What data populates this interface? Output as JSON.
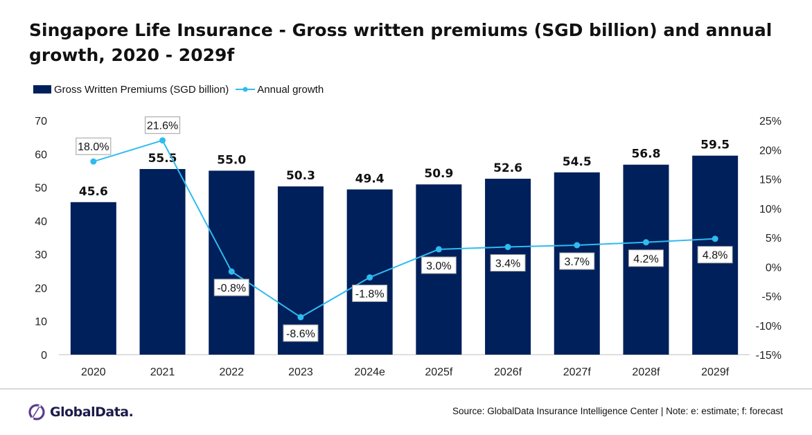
{
  "title": "Singapore Life Insurance - Gross written premiums (SGD billion) and annual growth, 2020 - 2029f",
  "footer": {
    "source": "Source: GlobalData Insurance Intelligence Center | Note: e: estimate; f: forecast",
    "logo_text": "GlobalData."
  },
  "colors": {
    "bar": "#00205b",
    "line": "#2fbbf0",
    "axis_text": "#222222"
  },
  "chart_data": {
    "type": "bar",
    "categories": [
      "2020",
      "2021",
      "2022",
      "2023",
      "2024e",
      "2025f",
      "2026f",
      "2027f",
      "2028f",
      "2029f"
    ],
    "series": [
      {
        "name": "Gross Written Premiums (SGD billion)",
        "type": "bar",
        "axis": "left",
        "values": [
          45.6,
          55.5,
          55.0,
          50.3,
          49.4,
          50.9,
          52.6,
          54.5,
          56.8,
          59.5
        ],
        "labels": [
          "45.6",
          "55.5",
          "55.0",
          "50.3",
          "49.4",
          "50.9",
          "52.6",
          "54.5",
          "56.8",
          "59.5"
        ]
      },
      {
        "name": "Annual growth",
        "type": "line",
        "axis": "right",
        "values": [
          18.0,
          21.6,
          -0.8,
          -8.6,
          -1.8,
          3.0,
          3.4,
          3.7,
          4.2,
          4.8
        ],
        "labels": [
          "18.0%",
          "21.6%",
          "-0.8%",
          "-8.6%",
          "-1.8%",
          "3.0%",
          "3.4%",
          "3.7%",
          "4.2%",
          "4.8%"
        ]
      }
    ],
    "left_axis": {
      "ylim": [
        0,
        70
      ],
      "ticks": [
        0,
        10,
        20,
        30,
        40,
        50,
        60,
        70
      ],
      "tick_labels": [
        "0",
        "10",
        "20",
        "30",
        "40",
        "50",
        "60",
        "70"
      ]
    },
    "right_axis": {
      "ylim": [
        -15,
        25
      ],
      "ticks": [
        -15,
        -10,
        -5,
        0,
        5,
        10,
        15,
        20,
        25
      ],
      "tick_labels": [
        "-15%",
        "-10%",
        "-5%",
        "0%",
        "5%",
        "10%",
        "15%",
        "20%",
        "25%"
      ]
    },
    "legend_position": "top-left",
    "grid": false
  }
}
